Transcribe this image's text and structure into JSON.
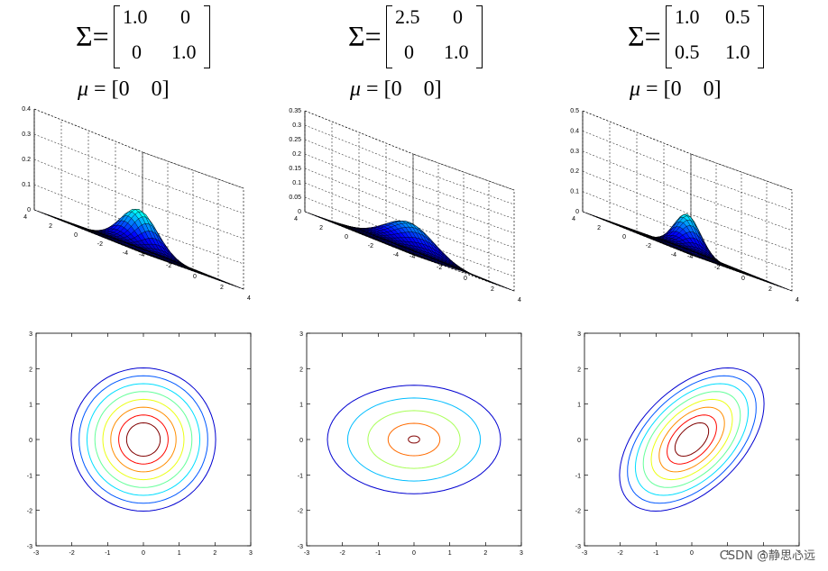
{
  "panels": [
    {
      "sigma_symbol": "Σ",
      "equals": "=",
      "sigma": [
        [
          "1.0",
          "0"
        ],
        [
          "0",
          "1.0"
        ]
      ],
      "mu_label": "μ",
      "mu_value": "[0    0]",
      "cov": [
        1.0,
        0,
        1.0
      ]
    },
    {
      "sigma_symbol": "Σ",
      "equals": "=",
      "sigma": [
        [
          "2.5",
          "0"
        ],
        [
          "0",
          "1.0"
        ]
      ],
      "mu_label": "μ",
      "mu_value": "[0    0]",
      "cov": [
        2.5,
        0,
        1.0
      ]
    },
    {
      "sigma_symbol": "Σ",
      "equals": "=",
      "sigma": [
        [
          "1.0",
          "0.5"
        ],
        [
          "0.5",
          "1.0"
        ]
      ],
      "mu_label": "μ",
      "mu_value": "[0    0]",
      "cov": [
        1.0,
        0.5,
        1.0
      ]
    }
  ],
  "chart_data": [
    {
      "type": "surface",
      "title": "",
      "zlim": [
        0,
        0.4
      ],
      "zticks": [
        "0",
        "0.1",
        "0.2",
        "0.3",
        "0.4"
      ],
      "xticks": [
        "-4",
        "-2",
        "0",
        "2",
        "4"
      ],
      "yticks": [
        "-4",
        "-2",
        "0",
        "2",
        "4"
      ]
    },
    {
      "type": "surface",
      "title": "",
      "zlim": [
        0,
        0.35
      ],
      "zticks": [
        "0",
        "0.05",
        "0.1",
        "0.15",
        "0.2",
        "0.25",
        "0.3",
        "0.35"
      ],
      "xticks": [
        "-4",
        "-2",
        "0",
        "2",
        "4"
      ],
      "yticks": [
        "-4",
        "-2",
        "0",
        "2",
        "4"
      ]
    },
    {
      "type": "surface",
      "title": "",
      "zlim": [
        0,
        0.5
      ],
      "zticks": [
        "0",
        "0.1",
        "0.2",
        "0.3",
        "0.4",
        "0.5"
      ],
      "xticks": [
        "-4",
        "-2",
        "0",
        "2",
        "4"
      ],
      "yticks": [
        "-4",
        "-2",
        "0",
        "2",
        "4"
      ]
    },
    {
      "type": "contour",
      "xlim": [
        -3,
        3
      ],
      "ylim": [
        -3,
        3
      ],
      "xticks": [
        "-3",
        "-2",
        "-1",
        "0",
        "1",
        "2",
        "3"
      ],
      "yticks": [
        "-3",
        "-2",
        "-1",
        "0",
        "1",
        "2",
        "3"
      ],
      "levels": 8
    },
    {
      "type": "contour",
      "xlim": [
        -3,
        3
      ],
      "ylim": [
        -3,
        3
      ],
      "xticks": [
        "-3",
        "-2",
        "-1",
        "0",
        "1",
        "2",
        "3"
      ],
      "yticks": [
        "-3",
        "-2",
        "-1",
        "0",
        "1",
        "2",
        "3"
      ],
      "levels": 5
    },
    {
      "type": "contour",
      "xlim": [
        -3,
        3
      ],
      "ylim": [
        -3,
        3
      ],
      "xticks": [
        "-3",
        "-2",
        "-1",
        "0",
        "1",
        "2",
        "3"
      ],
      "yticks": [
        "-3",
        "-2",
        "-1",
        "0",
        "1",
        "2",
        "3"
      ],
      "levels": 8
    }
  ],
  "watermark": "CSDN @静思心远"
}
